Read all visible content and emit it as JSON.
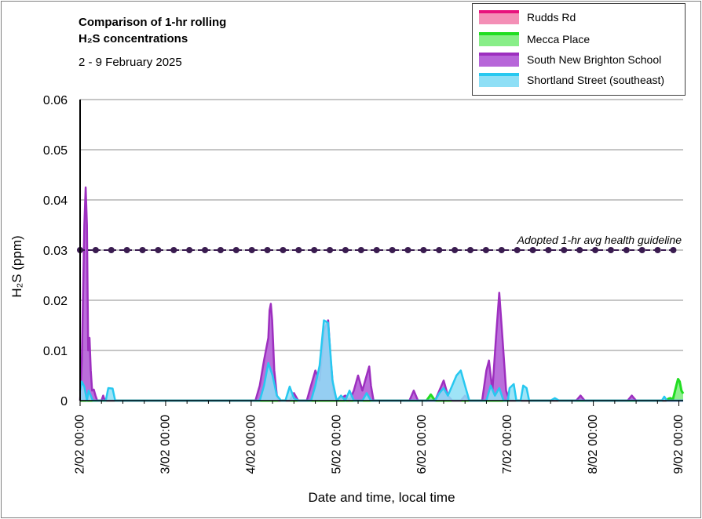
{
  "title_lines": [
    "Comparison of 1-hr rolling",
    "H₂S concentrations"
  ],
  "subtitle": "2 - 9 February 2025",
  "chart_data": {
    "type": "area",
    "ylabel": "H₂S (ppm)",
    "xlabel": "Date and time, local time",
    "ylim": [
      0,
      0.06
    ],
    "yticks": [
      0,
      0.01,
      0.02,
      0.03,
      0.04,
      0.05,
      0.06
    ],
    "ytick_labels": [
      "0",
      "0.01",
      "0.02",
      "0.03",
      "0.04",
      "0.05",
      "0.06"
    ],
    "xlim": [
      0,
      7.05
    ],
    "xticks": [
      0,
      1,
      2,
      3,
      4,
      5,
      6,
      7
    ],
    "xtick_labels": [
      "2/02 00:00",
      "3/02 00:00",
      "4/02 00:00",
      "5/02 00:00",
      "6/02 00:00",
      "7/02 00:00",
      "8/02 00:00",
      "9/02 00:00"
    ],
    "x_units": "days since 2/02 00:00",
    "grid": "horizontal",
    "legend_position": "top-right",
    "series": [
      {
        "name": "Rudds Rd",
        "color": "#e8127c",
        "fill": "#f48fb6",
        "points": [
          [
            0,
            0
          ],
          [
            7.05,
            0
          ]
        ]
      },
      {
        "name": "Mecca Place",
        "color": "#22dd22",
        "fill": "#88ee88",
        "points": [
          [
            0,
            0
          ],
          [
            4.05,
            0
          ],
          [
            4.1,
            0.0012
          ],
          [
            4.15,
            0
          ],
          [
            6.85,
            0
          ],
          [
            6.88,
            0.0004
          ],
          [
            6.9,
            0.0005
          ],
          [
            6.93,
            0.0002
          ],
          [
            6.97,
            0.003
          ],
          [
            6.99,
            0.0043
          ],
          [
            7.01,
            0.0038
          ],
          [
            7.03,
            0.002
          ],
          [
            7.05,
            0.0014
          ]
        ]
      },
      {
        "name": "South New Brighton School",
        "color": "#9d2fbf",
        "fill": "#b766d9",
        "points": [
          [
            0,
            0
          ],
          [
            0.02,
            0.008
          ],
          [
            0.05,
            0.035
          ],
          [
            0.065,
            0.0425
          ],
          [
            0.08,
            0.035
          ],
          [
            0.095,
            0.01
          ],
          [
            0.11,
            0.0125
          ],
          [
            0.125,
            0.006
          ],
          [
            0.14,
            0.002
          ],
          [
            0.16,
            0.0022
          ],
          [
            0.18,
            0.001
          ],
          [
            0.2,
            0
          ],
          [
            0.25,
            0
          ],
          [
            0.27,
            0.001
          ],
          [
            0.29,
            0
          ],
          [
            1.95,
            0
          ],
          [
            2.05,
            0
          ],
          [
            2.1,
            0.003
          ],
          [
            2.15,
            0.008
          ],
          [
            2.2,
            0.0125
          ],
          [
            2.215,
            0.018
          ],
          [
            2.23,
            0.0193
          ],
          [
            2.245,
            0.016
          ],
          [
            2.27,
            0.006
          ],
          [
            2.3,
            0.001
          ],
          [
            2.32,
            0
          ],
          [
            2.45,
            0
          ],
          [
            2.5,
            0.0015
          ],
          [
            2.55,
            0
          ],
          [
            2.65,
            0
          ],
          [
            2.7,
            0.003
          ],
          [
            2.75,
            0.006
          ],
          [
            2.8,
            0.004
          ],
          [
            2.85,
            0.014
          ],
          [
            2.9,
            0.016
          ],
          [
            2.93,
            0.008
          ],
          [
            2.96,
            0.002
          ],
          [
            3.0,
            0
          ],
          [
            3.1,
            0.001
          ],
          [
            3.15,
            0
          ],
          [
            3.2,
            0.002
          ],
          [
            3.25,
            0.005
          ],
          [
            3.3,
            0.002
          ],
          [
            3.35,
            0.005
          ],
          [
            3.38,
            0.0068
          ],
          [
            3.4,
            0.003
          ],
          [
            3.43,
            0
          ],
          [
            3.85,
            0
          ],
          [
            3.9,
            0.002
          ],
          [
            3.95,
            0
          ],
          [
            4.15,
            0
          ],
          [
            4.2,
            0.002
          ],
          [
            4.25,
            0.004
          ],
          [
            4.3,
            0.001
          ],
          [
            4.35,
            0
          ],
          [
            4.45,
            0
          ],
          [
            4.5,
            0.001
          ],
          [
            4.55,
            0
          ],
          [
            4.7,
            0
          ],
          [
            4.75,
            0.006
          ],
          [
            4.78,
            0.008
          ],
          [
            4.82,
            0.002
          ],
          [
            4.86,
            0.012
          ],
          [
            4.9,
            0.0215
          ],
          [
            4.94,
            0.012
          ],
          [
            4.98,
            0.002
          ],
          [
            5.02,
            0
          ],
          [
            5.8,
            0
          ],
          [
            5.85,
            0.001
          ],
          [
            5.9,
            0
          ],
          [
            6.4,
            0
          ],
          [
            6.45,
            0.001
          ],
          [
            6.5,
            0
          ],
          [
            6.95,
            0
          ],
          [
            7.05,
            0
          ]
        ]
      },
      {
        "name": "Shortland Street (southeast)",
        "color": "#27c8f0",
        "fill": "#8edff6",
        "points": [
          [
            0,
            0.002
          ],
          [
            0.02,
            0.0038
          ],
          [
            0.05,
            0.0028
          ],
          [
            0.08,
            0
          ],
          [
            0.1,
            0.002
          ],
          [
            0.15,
            0
          ],
          [
            0.3,
            0
          ],
          [
            0.33,
            0.0025
          ],
          [
            0.38,
            0.0024
          ],
          [
            0.41,
            0
          ],
          [
            2.1,
            0
          ],
          [
            2.15,
            0.003
          ],
          [
            2.2,
            0.0075
          ],
          [
            2.25,
            0.005
          ],
          [
            2.3,
            0.001
          ],
          [
            2.35,
            0
          ],
          [
            2.4,
            0
          ],
          [
            2.45,
            0.0028
          ],
          [
            2.5,
            0.0005
          ],
          [
            2.55,
            0
          ],
          [
            2.7,
            0
          ],
          [
            2.75,
            0.003
          ],
          [
            2.8,
            0.007
          ],
          [
            2.85,
            0.016
          ],
          [
            2.9,
            0.0155
          ],
          [
            2.95,
            0.004
          ],
          [
            3.0,
            0
          ],
          [
            3.05,
            0.001
          ],
          [
            3.1,
            0
          ],
          [
            3.15,
            0.002
          ],
          [
            3.2,
            0
          ],
          [
            3.3,
            0
          ],
          [
            3.35,
            0.0015
          ],
          [
            3.4,
            0
          ],
          [
            4.15,
            0
          ],
          [
            4.2,
            0.0015
          ],
          [
            4.25,
            0.0025
          ],
          [
            4.3,
            0.001
          ],
          [
            4.35,
            0.003
          ],
          [
            4.4,
            0.005
          ],
          [
            4.45,
            0.006
          ],
          [
            4.5,
            0.003
          ],
          [
            4.55,
            0
          ],
          [
            4.75,
            0
          ],
          [
            4.8,
            0.003
          ],
          [
            4.85,
            0.001
          ],
          [
            4.9,
            0.0025
          ],
          [
            4.95,
            0
          ],
          [
            5.0,
            0
          ],
          [
            5.02,
            0.0025
          ],
          [
            5.07,
            0.0033
          ],
          [
            5.1,
            0
          ],
          [
            5.15,
            0
          ],
          [
            5.18,
            0.003
          ],
          [
            5.22,
            0.0025
          ],
          [
            5.25,
            0
          ],
          [
            5.5,
            0
          ],
          [
            5.55,
            0.0005
          ],
          [
            5.6,
            0
          ],
          [
            6.8,
            0
          ],
          [
            6.83,
            0.0008
          ],
          [
            6.86,
            0
          ],
          [
            7.05,
            0
          ]
        ]
      }
    ],
    "guideline": {
      "label": "Adopted 1-hr avg health guideline",
      "value": 0.03,
      "color": "#3a1c50"
    }
  }
}
